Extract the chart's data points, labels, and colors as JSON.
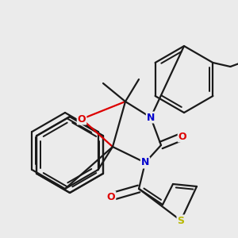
{
  "background_color": "#ebebeb",
  "bond_color": "#1a1a1a",
  "bond_width": 1.6,
  "figsize": [
    3.0,
    3.0
  ],
  "dpi": 100,
  "colors": {
    "O": "#dd0000",
    "N": "#0000cc",
    "S": "#b8b800",
    "C": "#1a1a1a"
  }
}
